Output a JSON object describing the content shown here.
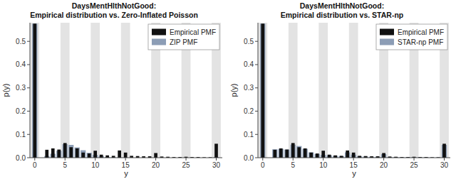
{
  "chart_data": [
    {
      "type": "bar",
      "title": "DaysMentHlthNotGood:\nEmpirical distribution vs. Zero-Inflated Poisson",
      "x_label": "y",
      "y_label": "p(y)",
      "x": [
        0,
        1,
        2,
        3,
        4,
        5,
        6,
        7,
        8,
        9,
        10,
        11,
        12,
        13,
        14,
        15,
        16,
        17,
        18,
        19,
        20,
        21,
        22,
        23,
        24,
        25,
        26,
        27,
        28,
        29,
        30
      ],
      "series": [
        {
          "name": "Empirical PMF",
          "color": "#111111",
          "values": [
            0.576,
            0.0,
            0.034,
            0.04,
            0.035,
            0.063,
            0.045,
            0.04,
            0.022,
            0.018,
            0.03,
            0.013,
            0.01,
            0.008,
            0.031,
            0.022,
            0.008,
            0.007,
            0.006,
            0.006,
            0.02,
            0.005,
            0.004,
            0.003,
            0.003,
            0.004,
            0.003,
            0.003,
            0.002,
            0.002,
            0.06
          ]
        },
        {
          "name": "ZIP PMF",
          "color": "#8c9db5",
          "values": [
            0.576,
            0.0,
            0.007,
            0.017,
            0.03,
            0.058,
            0.055,
            0.044,
            0.032,
            0.021,
            0.012,
            0.007,
            0.003,
            0.002,
            0.001,
            0.001,
            0.0,
            0.0,
            0.0,
            0.0,
            0.0,
            0.0,
            0.0,
            0.0,
            0.0,
            0.0,
            0.0,
            0.0,
            0.0,
            0.0,
            0.003
          ]
        }
      ],
      "xlim": [
        -0.8,
        31.0
      ],
      "ylim": [
        0.0,
        0.58
      ],
      "xticks": [
        0,
        5,
        10,
        15,
        20,
        25,
        30
      ],
      "yticks": [
        {
          "value": 0.0,
          "label": "0.0"
        },
        0.1,
        0.2,
        0.3,
        0.4,
        0.5
      ],
      "grid": true,
      "legend": "upper right"
    },
    {
      "type": "bar",
      "title": "DaysMentHlthNotGood:\nEmpirical distribution vs. STAR-np",
      "x_label": "y",
      "y_label": "p(y)",
      "x": [
        0,
        1,
        2,
        3,
        4,
        5,
        6,
        7,
        8,
        9,
        10,
        11,
        12,
        13,
        14,
        15,
        16,
        17,
        18,
        19,
        20,
        21,
        22,
        23,
        24,
        25,
        26,
        27,
        28,
        29,
        30
      ],
      "series": [
        {
          "name": "Empirical PMF",
          "color": "#111111",
          "values": [
            0.576,
            0.0,
            0.034,
            0.04,
            0.035,
            0.063,
            0.045,
            0.04,
            0.022,
            0.018,
            0.03,
            0.013,
            0.01,
            0.008,
            0.031,
            0.022,
            0.008,
            0.007,
            0.006,
            0.006,
            0.02,
            0.005,
            0.004,
            0.003,
            0.003,
            0.004,
            0.003,
            0.003,
            0.002,
            0.002,
            0.06
          ]
        },
        {
          "name": "STAR-np PMF",
          "color": "#8c9db5",
          "values": [
            0.576,
            0.0,
            0.036,
            0.038,
            0.035,
            0.056,
            0.05,
            0.038,
            0.023,
            0.016,
            0.012,
            0.01,
            0.008,
            0.007,
            0.023,
            0.013,
            0.006,
            0.005,
            0.004,
            0.004,
            0.015,
            0.003,
            0.003,
            0.002,
            0.002,
            0.003,
            0.002,
            0.002,
            0.001,
            0.001,
            0.055
          ]
        }
      ],
      "xlim": [
        -0.8,
        31.0
      ],
      "ylim": [
        0.0,
        0.58
      ],
      "xticks": [
        0,
        5,
        10,
        15,
        20,
        25,
        30
      ],
      "yticks": [
        {
          "value": 0.0,
          "label": "0.0"
        },
        0.1,
        0.2,
        0.3,
        0.4,
        0.5
      ],
      "grid": true,
      "legend": "upper right"
    }
  ]
}
